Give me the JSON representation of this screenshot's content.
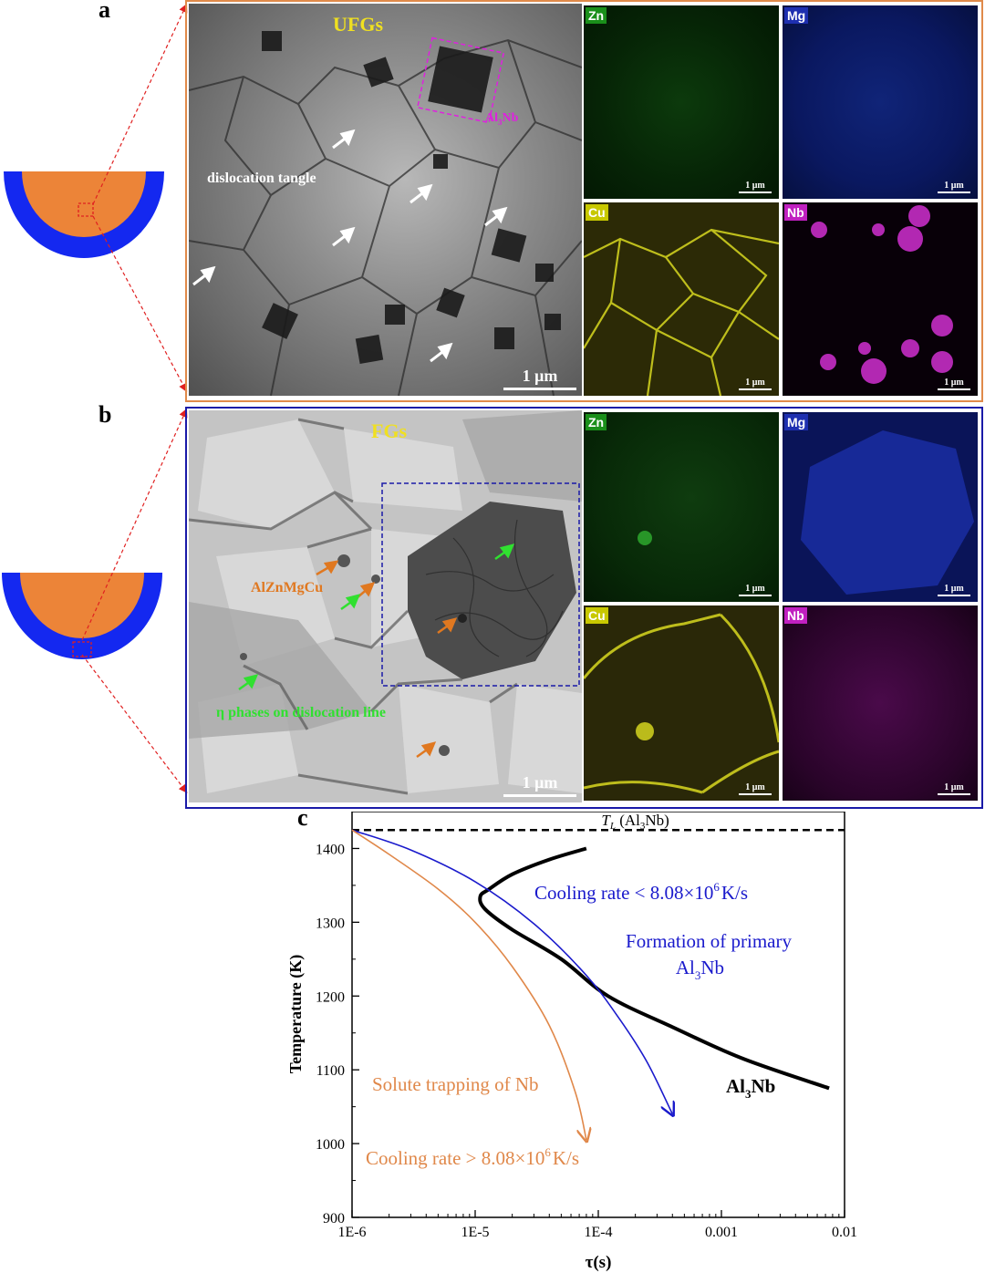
{
  "panel_a": {
    "letter": "a",
    "tem_title": "UFGs",
    "annotation_dislocation": "dislocation tangle",
    "annotation_precipitate": "Al3Nb",
    "scale_bar": "1 μm",
    "maps": [
      {
        "element": "Zn",
        "scale": "1 μm",
        "color": "#1a8f1a"
      },
      {
        "element": "Mg",
        "scale": "1 μm",
        "color": "#1e2fb0"
      },
      {
        "element": "Cu",
        "scale": "1 μm",
        "color": "#c8c800"
      },
      {
        "element": "Nb",
        "scale": "1 μm",
        "color": "#c020c0"
      }
    ],
    "frame_color": "#e08a4a"
  },
  "panel_b": {
    "letter": "b",
    "tem_title": "FGs",
    "annotation_phase": "AlZnMgCu",
    "annotation_eta": "η phases on dislocation line",
    "scale_bar": "1 μm",
    "maps": [
      {
        "element": "Zn",
        "scale": "1 μm",
        "color": "#1a8f1a"
      },
      {
        "element": "Mg",
        "scale": "1 μm",
        "color": "#1e2fb0"
      },
      {
        "element": "Cu",
        "scale": "1 μm",
        "color": "#c8c800"
      },
      {
        "element": "Nb",
        "scale": "1 μm",
        "color": "#c020c0"
      }
    ],
    "frame_color": "#1a1aa8"
  },
  "panel_c": {
    "letter": "c",
    "chart_data": {
      "type": "line",
      "x_scale": "log",
      "xlabel": "τ(s)",
      "ylabel": "Temperature (K)",
      "xlim": [
        1e-06,
        0.01
      ],
      "ylim": [
        900,
        1450
      ],
      "x_ticks": [
        "1E-6",
        "1E-5",
        "1E-4",
        "0.001",
        "0.01"
      ],
      "x_tick_values": [
        1e-06,
        1e-05,
        0.0001,
        0.001,
        0.01
      ],
      "y_ticks": [
        "900",
        "1000",
        "1100",
        "1200",
        "1300",
        "1400"
      ],
      "y_tick_values": [
        900,
        1000,
        1100,
        1200,
        1300,
        1400
      ],
      "liquidus": {
        "label_prefix": "T",
        "label_sub": "L",
        "label_rest": " (Al",
        "label_sub2": "3",
        "label_end": "Nb)",
        "value": 1425
      },
      "series": [
        {
          "name": "Al3Nb",
          "label_main": "Al",
          "label_sub": "3",
          "label_end": "Nb",
          "color": "#000000",
          "x": [
            8e-05,
            4e-05,
            2e-05,
            1.3e-05,
            1.1e-05,
            1.2e-05,
            2e-05,
            5e-05,
            0.00012,
            0.0004,
            0.0015,
            0.0075
          ],
          "y": [
            1400,
            1385,
            1365,
            1345,
            1335,
            1318,
            1290,
            1250,
            1200,
            1158,
            1115,
            1075
          ]
        },
        {
          "name": "Cooling rate < 8.08×10^6 K/s",
          "color": "#1a1acc",
          "x": [
            1e-06,
            3e-06,
            1e-05,
            3e-05,
            8e-05,
            0.00015,
            0.00025,
            0.0004
          ],
          "y": [
            1425,
            1398,
            1355,
            1298,
            1228,
            1168,
            1110,
            1040
          ]
        },
        {
          "name": "Cooling rate > 8.08×10^6 K/s",
          "color": "#e0884a",
          "x": [
            1e-06,
            2e-06,
            5e-06,
            1e-05,
            2e-05,
            4e-05,
            6.5e-05,
            8e-05
          ],
          "y": [
            1425,
            1392,
            1345,
            1300,
            1240,
            1160,
            1070,
            1005
          ]
        }
      ],
      "annotations": {
        "blue_rate": "Cooling rate  < 8.08×10",
        "blue_rate_exp": "6",
        "blue_rate_unit": "K/s",
        "formation_line1": "Formation of primary",
        "formation_main": "Al",
        "formation_sub": "3",
        "formation_end": "Nb",
        "solute": "Solute trapping of Nb",
        "orange_rate": "Cooling rate  > 8.08×10",
        "orange_rate_exp": "6",
        "orange_rate_unit": "K/s"
      }
    }
  }
}
